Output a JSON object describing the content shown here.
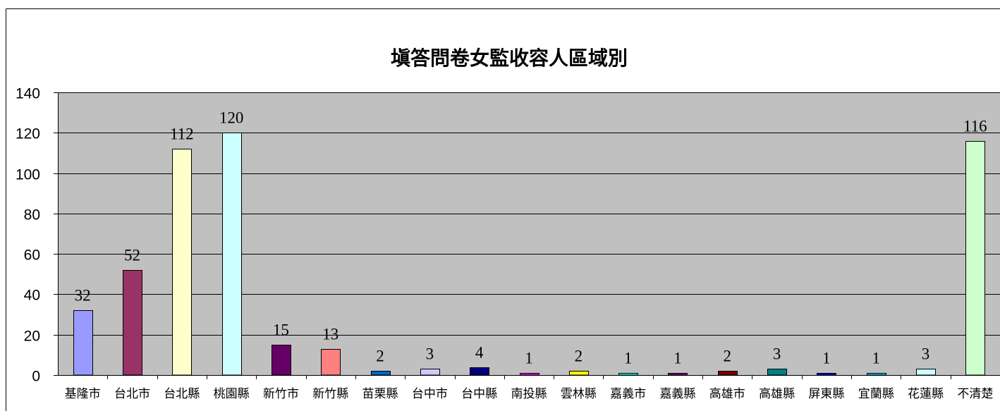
{
  "chart_data": {
    "type": "bar",
    "title": "塡答問卷女監收容人區域別",
    "categories": [
      "基隆市",
      "台北市",
      "台北縣",
      "桃園縣",
      "新竹市",
      "新竹縣",
      "苗栗縣",
      "台中市",
      "台中縣",
      "南投縣",
      "雲林縣",
      "嘉義市",
      "嘉義縣",
      "高雄市",
      "高雄縣",
      "屏東縣",
      "宜蘭縣",
      "花蓮縣",
      "不清楚"
    ],
    "values": [
      32,
      52,
      112,
      120,
      15,
      13,
      2,
      3,
      4,
      1,
      2,
      1,
      1,
      2,
      3,
      1,
      1,
      3,
      116
    ],
    "colors": [
      "#9999FF",
      "#993366",
      "#FFFFCC",
      "#CCFFFF",
      "#660066",
      "#FF8080",
      "#0066CC",
      "#CCCCFF",
      "#000080",
      "#FF00FF",
      "#FFFF00",
      "#00FFFF",
      "#800080",
      "#800000",
      "#008080",
      "#0000FF",
      "#00CCFF",
      "#CCFFFF",
      "#CCFFCC"
    ],
    "ylim": [
      0,
      140
    ],
    "yticks": [
      0,
      20,
      40,
      60,
      80,
      100,
      120,
      140
    ],
    "grid": true,
    "legend": false,
    "data_labels": true,
    "plot_background": "#C0C0C0"
  }
}
